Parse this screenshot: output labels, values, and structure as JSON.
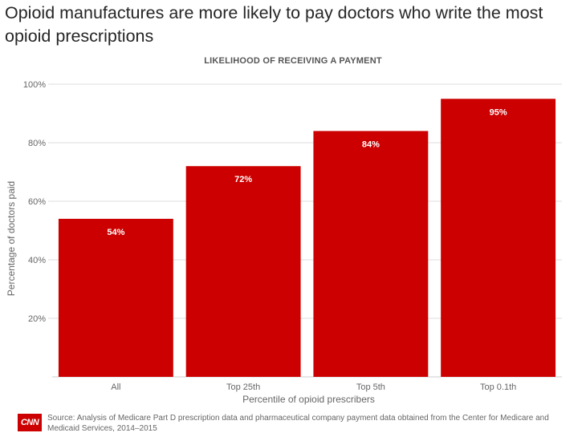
{
  "headline": "Opioid manufactures are more likely to pay doctors who write the most opioid prescriptions",
  "chart_data": {
    "type": "bar",
    "title": "LIKELIHOOD OF RECEIVING A PAYMENT",
    "categories": [
      "All",
      "Top 25th",
      "Top 5th",
      "Top 0.1th"
    ],
    "values": [
      54,
      72,
      84,
      95
    ],
    "data_labels": [
      "54%",
      "72%",
      "84%",
      "95%"
    ],
    "xlabel": "Percentile of opioid prescribers",
    "ylabel": "Percentage of doctors paid",
    "ylim": [
      0,
      100
    ],
    "yticks": [
      20,
      40,
      60,
      80,
      100
    ],
    "ytick_labels": [
      "20%",
      "40%",
      "60%",
      "80%",
      "100%"
    ],
    "grid": "horizontal",
    "bar_color": "#cc0000",
    "label_color": "#ffffff"
  },
  "footer": {
    "logo_text": "CNN",
    "source": "Source: Analysis of Medicare Part D prescription data and pharmaceutical company payment data obtained from the Center for Medicare and Medicaid Services, 2014–2015"
  }
}
